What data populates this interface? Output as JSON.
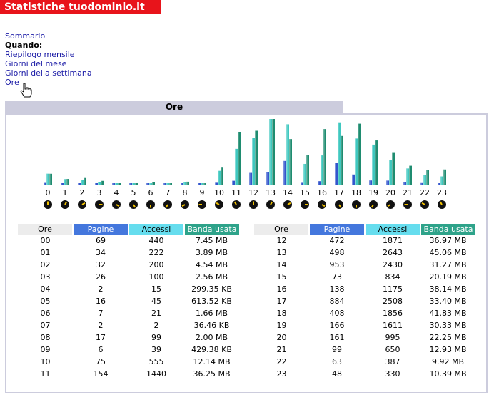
{
  "header": {
    "title": "Statistiche tuodominio.it"
  },
  "nav": {
    "summary": "Sommario",
    "when_label": "Quando:",
    "links": [
      "Riepilogo mensile",
      "Giorni del mese",
      "Giorni della settimana",
      "Ore"
    ]
  },
  "section": {
    "title": "Ore"
  },
  "table": {
    "headers": [
      "Ore",
      "Pagine",
      "Accessi",
      "Banda usata"
    ],
    "left_rows": [
      [
        "00",
        "69",
        "440",
        "7.45 MB"
      ],
      [
        "01",
        "34",
        "222",
        "3.89 MB"
      ],
      [
        "02",
        "32",
        "200",
        "4.54 MB"
      ],
      [
        "03",
        "26",
        "100",
        "2.56 MB"
      ],
      [
        "04",
        "2",
        "15",
        "299.35 KB"
      ],
      [
        "05",
        "16",
        "45",
        "613.52 KB"
      ],
      [
        "06",
        "7",
        "21",
        "1.66 MB"
      ],
      [
        "07",
        "2",
        "2",
        "36.46 KB"
      ],
      [
        "08",
        "17",
        "99",
        "2.00 MB"
      ],
      [
        "09",
        "6",
        "39",
        "429.38 KB"
      ],
      [
        "10",
        "75",
        "555",
        "12.14 MB"
      ],
      [
        "11",
        "154",
        "1440",
        "36.25 MB"
      ]
    ],
    "right_rows": [
      [
        "12",
        "472",
        "1871",
        "36.97 MB"
      ],
      [
        "13",
        "498",
        "2643",
        "45.06 MB"
      ],
      [
        "14",
        "953",
        "2430",
        "31.27 MB"
      ],
      [
        "15",
        "73",
        "834",
        "20.19 MB"
      ],
      [
        "16",
        "138",
        "1175",
        "38.14 MB"
      ],
      [
        "17",
        "884",
        "2508",
        "33.40 MB"
      ],
      [
        "18",
        "408",
        "1856",
        "41.83 MB"
      ],
      [
        "19",
        "166",
        "1611",
        "30.33 MB"
      ],
      [
        "20",
        "161",
        "995",
        "22.25 MB"
      ],
      [
        "21",
        "99",
        "650",
        "12.93 MB"
      ],
      [
        "22",
        "63",
        "387",
        "9.92 MB"
      ],
      [
        "23",
        "48",
        "330",
        "10.39 MB"
      ]
    ]
  },
  "chart_data": {
    "type": "bar",
    "categories": [
      "0",
      "1",
      "2",
      "3",
      "4",
      "5",
      "6",
      "7",
      "8",
      "9",
      "10",
      "11",
      "12",
      "13",
      "14",
      "15",
      "16",
      "17",
      "18",
      "19",
      "20",
      "21",
      "22",
      "23"
    ],
    "series": [
      {
        "name": "Pagine",
        "color": "#3355cc",
        "values": [
          69,
          34,
          32,
          26,
          2,
          16,
          7,
          2,
          17,
          6,
          75,
          154,
          472,
          498,
          953,
          73,
          138,
          884,
          408,
          166,
          161,
          99,
          63,
          48
        ]
      },
      {
        "name": "Accessi",
        "color": "#40c8c0",
        "values": [
          440,
          222,
          200,
          100,
          15,
          45,
          21,
          2,
          99,
          39,
          555,
          1440,
          1871,
          2643,
          2430,
          834,
          1175,
          2508,
          1856,
          1611,
          995,
          650,
          387,
          330
        ]
      },
      {
        "name": "Banda usata",
        "color": "#1f8c70",
        "values": [
          7.45,
          3.89,
          4.54,
          2.56,
          0.29,
          0.6,
          1.66,
          0.04,
          2.0,
          0.42,
          12.14,
          36.25,
          36.97,
          45.06,
          31.27,
          20.19,
          38.14,
          33.4,
          41.83,
          30.33,
          22.25,
          12.93,
          9.92,
          10.39
        ]
      }
    ],
    "icon": "clock-icon"
  }
}
